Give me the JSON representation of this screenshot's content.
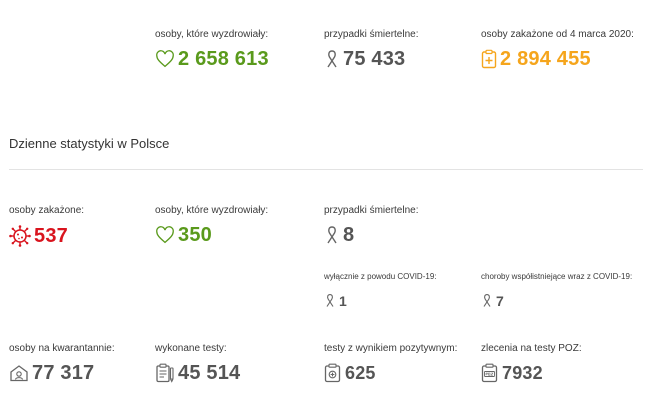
{
  "totals": {
    "recovered": {
      "label": "osoby, które wyzdrowiały:",
      "value": "2 658 613",
      "icon": "heart-icon",
      "color": "#5a9a1c"
    },
    "deaths": {
      "label": "przypadki śmiertelne:",
      "value": "75 433",
      "icon": "ribbon-icon",
      "color": "#555555"
    },
    "infected": {
      "label": "osoby zakażone od 4 marca 2020:",
      "value": "2 894 455",
      "icon": "medical-clipboard-icon",
      "color": "#f5a51c"
    }
  },
  "daily": {
    "title": "Dzienne statystyki w Polsce",
    "infected": {
      "label": "osoby zakażone:",
      "value": "537",
      "icon": "virus-icon",
      "color": "#d9141e"
    },
    "recovered": {
      "label": "osoby, które wyzdrowiały:",
      "value": "350",
      "icon": "heart-icon",
      "color": "#5a9a1c"
    },
    "deaths": {
      "label": "przypadki śmiertelne:",
      "value": "8",
      "icon": "ribbon-icon"
    },
    "deaths_covid_only": {
      "label": "wyłącznie z powodu COVID-19:",
      "value": "1",
      "icon": "ribbon-icon"
    },
    "deaths_comorbid": {
      "label": "choroby współistniejące wraz z COVID-19:",
      "value": "7",
      "icon": "ribbon-icon"
    },
    "quarantine": {
      "label": "osoby na kwarantannie:",
      "value": "77 317",
      "icon": "house-icon"
    },
    "tests": {
      "label": "wykonane testy:",
      "value": "45 514",
      "icon": "clipboard-list-icon"
    },
    "positive_tests": {
      "label": "testy z wynikiem pozytywnym:",
      "value": "625",
      "icon": "positive-test-icon"
    },
    "poz_orders": {
      "label": "zlecenia na testy POZ:",
      "value": "7932",
      "icon": "poz-order-icon"
    }
  }
}
